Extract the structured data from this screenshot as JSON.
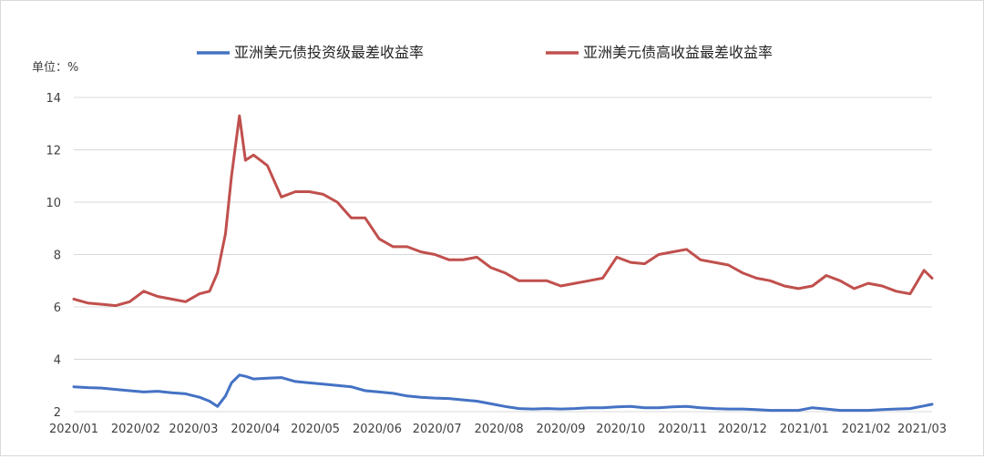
{
  "chart_data": {
    "type": "line",
    "unit_label": "单位：%",
    "ylim": [
      2,
      14
    ],
    "y_ticks": [
      "2",
      "4",
      "6",
      "8",
      "10",
      "12",
      "14"
    ],
    "x_tick_labels": [
      "2020/01",
      "2020/02",
      "2020/03",
      "2020/04",
      "2020/05",
      "2020/06",
      "2020/07",
      "2020/08",
      "2020/09",
      "2020/10",
      "2020/11",
      "2020/12",
      "2021/01",
      "2021/02",
      "2021/03"
    ],
    "grid": "horizontal",
    "legend_position": "top",
    "x": [
      "2020-01-01",
      "2020-01-08",
      "2020-01-15",
      "2020-01-22",
      "2020-01-29",
      "2020-02-05",
      "2020-02-12",
      "2020-02-19",
      "2020-02-26",
      "2020-03-04",
      "2020-03-09",
      "2020-03-13",
      "2020-03-17",
      "2020-03-20",
      "2020-03-24",
      "2020-03-27",
      "2020-03-31",
      "2020-04-07",
      "2020-04-14",
      "2020-04-21",
      "2020-04-28",
      "2020-05-05",
      "2020-05-12",
      "2020-05-19",
      "2020-05-26",
      "2020-06-02",
      "2020-06-09",
      "2020-06-16",
      "2020-06-23",
      "2020-06-30",
      "2020-07-07",
      "2020-07-14",
      "2020-07-21",
      "2020-07-28",
      "2020-08-04",
      "2020-08-11",
      "2020-08-18",
      "2020-08-25",
      "2020-09-01",
      "2020-09-08",
      "2020-09-15",
      "2020-09-22",
      "2020-09-29",
      "2020-10-06",
      "2020-10-13",
      "2020-10-20",
      "2020-10-27",
      "2020-11-03",
      "2020-11-10",
      "2020-11-17",
      "2020-11-24",
      "2020-12-01",
      "2020-12-08",
      "2020-12-15",
      "2020-12-22",
      "2020-12-29",
      "2021-01-05",
      "2021-01-12",
      "2021-01-19",
      "2021-01-26",
      "2021-02-02",
      "2021-02-09",
      "2021-02-16",
      "2021-02-23",
      "2021-03-02",
      "2021-03-06"
    ],
    "series": [
      {
        "name": "亚洲美元债投资级最差收益率",
        "color": "#4472c4",
        "values": [
          2.95,
          2.92,
          2.9,
          2.85,
          2.8,
          2.75,
          2.78,
          2.72,
          2.68,
          2.55,
          2.4,
          2.2,
          2.6,
          3.1,
          3.4,
          3.35,
          3.25,
          3.28,
          3.3,
          3.15,
          3.1,
          3.05,
          3.0,
          2.95,
          2.8,
          2.75,
          2.7,
          2.6,
          2.55,
          2.52,
          2.5,
          2.45,
          2.4,
          2.3,
          2.2,
          2.12,
          2.1,
          2.12,
          2.1,
          2.12,
          2.15,
          2.15,
          2.18,
          2.2,
          2.15,
          2.15,
          2.18,
          2.2,
          2.15,
          2.12,
          2.1,
          2.1,
          2.08,
          2.05,
          2.05,
          2.05,
          2.15,
          2.1,
          2.05,
          2.05,
          2.05,
          2.08,
          2.1,
          2.12,
          2.22,
          2.28
        ]
      },
      {
        "name": "亚洲美元债高收益最差收益率",
        "color": "#c0504d",
        "values": [
          6.3,
          6.15,
          6.1,
          6.05,
          6.2,
          6.6,
          6.4,
          6.3,
          6.2,
          6.5,
          6.6,
          7.3,
          8.8,
          11.0,
          13.3,
          11.6,
          11.8,
          11.4,
          10.2,
          10.4,
          10.4,
          10.3,
          10.0,
          9.4,
          9.4,
          8.6,
          8.3,
          8.3,
          8.1,
          8.0,
          7.8,
          7.8,
          7.9,
          7.5,
          7.3,
          7.0,
          7.0,
          7.0,
          6.8,
          6.9,
          7.0,
          7.1,
          7.9,
          7.7,
          7.65,
          8.0,
          8.1,
          8.2,
          7.8,
          7.7,
          7.6,
          7.3,
          7.1,
          7.0,
          6.8,
          6.7,
          6.8,
          7.2,
          7.0,
          6.7,
          6.9,
          6.8,
          6.6,
          6.5,
          7.4,
          7.1
        ]
      }
    ]
  }
}
